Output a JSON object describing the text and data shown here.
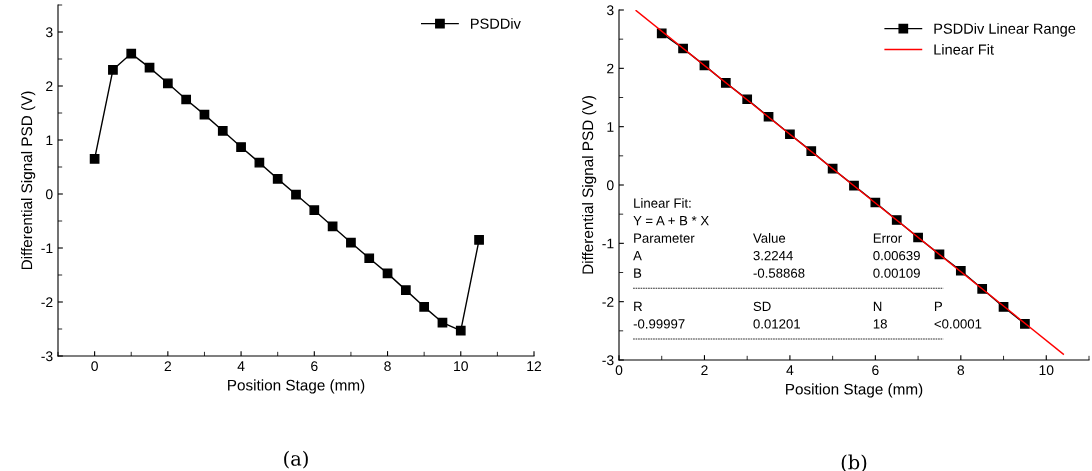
{
  "chart_data": [
    {
      "type": "line",
      "xlabel": "Position Stage (mm)",
      "ylabel": "Differential Signal PSD (V)",
      "xlim": [
        -1,
        12
      ],
      "ylim": [
        -3,
        3.5
      ],
      "xticks": [
        0,
        2,
        4,
        6,
        8,
        10,
        12
      ],
      "yticks": [
        -3,
        -2,
        -1,
        0,
        1,
        2,
        3
      ],
      "grid": false,
      "legend": "top right",
      "marker": "square",
      "x": [
        0,
        0.5,
        1,
        1.5,
        2,
        2.5,
        3,
        3.5,
        4,
        4.5,
        5,
        5.5,
        6,
        6.5,
        7,
        7.5,
        8,
        8.5,
        9,
        9.5,
        10,
        10.5
      ],
      "series": [
        {
          "name": "PSDDiv",
          "color": "#000000",
          "values": [
            0.65,
            2.3,
            2.6,
            2.34,
            2.05,
            1.75,
            1.47,
            1.17,
            0.87,
            0.58,
            0.28,
            -0.01,
            -0.3,
            -0.6,
            -0.9,
            -1.19,
            -1.47,
            -1.78,
            -2.09,
            -2.38,
            -2.53,
            -0.85
          ]
        }
      ],
      "annotations": [
        "(a)"
      ]
    },
    {
      "type": "line",
      "xlabel": "Position Stage (mm)",
      "ylabel": "Differential Signal PSD (V)",
      "xlim": [
        0,
        11
      ],
      "ylim": [
        -3,
        3
      ],
      "xticks": [
        0,
        2,
        4,
        6,
        8,
        10
      ],
      "yticks": [
        -3,
        -2,
        -1,
        0,
        1,
        2,
        3
      ],
      "grid": false,
      "legend": "top right",
      "marker": "square",
      "x": [
        1,
        1.5,
        2,
        2.5,
        3,
        3.5,
        4,
        4.5,
        5,
        5.5,
        6,
        6.5,
        7,
        7.5,
        8,
        8.5,
        9,
        9.5
      ],
      "series": [
        {
          "name": "PSDDiv Linear Range",
          "color": "#000000",
          "values": [
            2.6,
            2.34,
            2.05,
            1.75,
            1.47,
            1.17,
            0.87,
            0.58,
            0.28,
            -0.01,
            -0.3,
            -0.6,
            -0.9,
            -1.19,
            -1.47,
            -1.78,
            -2.09,
            -2.38
          ]
        },
        {
          "name": "Linear Fit",
          "color": "#ff0000",
          "marker": "none",
          "x": [
            0.4,
            10.4
          ],
          "values": [
            2.99,
            -2.9
          ]
        }
      ],
      "annotations": [
        "(b)",
        "Linear Fit:",
        "Y = A + B * X",
        "Parameter",
        "Value",
        "Error",
        "A",
        "3.2244",
        "0.00639",
        "B",
        "-0.58868",
        "0.00109",
        "R",
        "SD",
        "N",
        "P",
        "-0.99997",
        "0.01201",
        "18",
        "<0.0001"
      ]
    }
  ]
}
